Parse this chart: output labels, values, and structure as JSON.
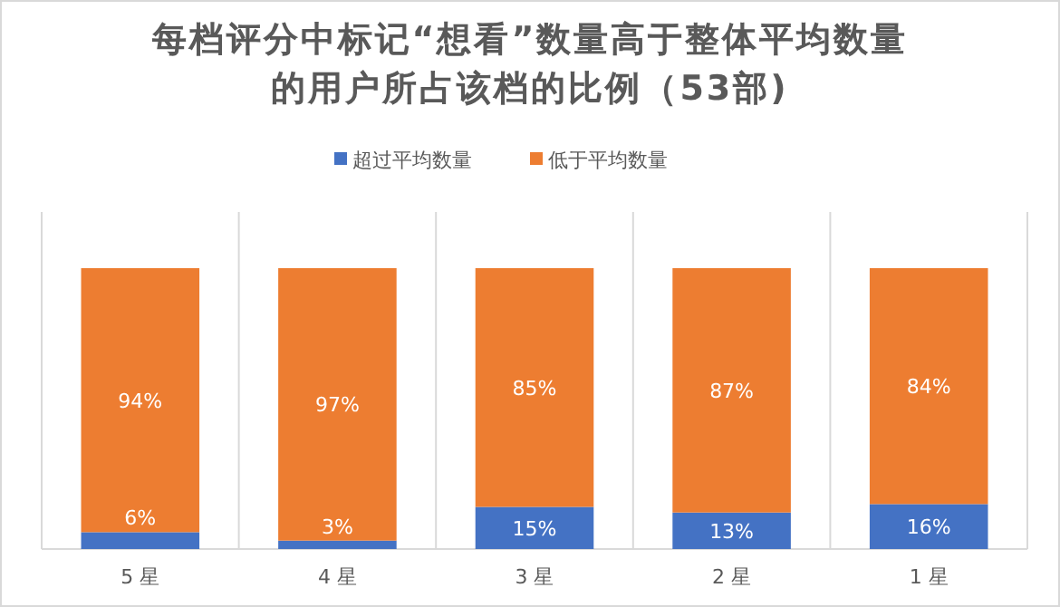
{
  "chart_data": {
    "type": "bar",
    "title": "每档评分中标记“想看”数量高于整体平均数量的用户所占该档的比例（53部)",
    "categories": [
      "5 星",
      "4 星",
      "3 星",
      "2 星",
      "1 星"
    ],
    "stacked": true,
    "ylim": [
      0,
      120
    ],
    "tick_labels": "x",
    "grid": "x",
    "legend": "top",
    "data_labels": true,
    "series": [
      {
        "name": "超过平均数量",
        "color": "#4472c4",
        "values": [
          6,
          3,
          15,
          13,
          16
        ],
        "value_labels": [
          "6%",
          "3%",
          "15%",
          "13%",
          "16%"
        ]
      },
      {
        "name": "低于平均数量",
        "color": "#ed7d31",
        "values": [
          94,
          97,
          85,
          87,
          84
        ],
        "value_labels": [
          "94%",
          "97%",
          "85%",
          "87%",
          "84%"
        ]
      }
    ]
  }
}
